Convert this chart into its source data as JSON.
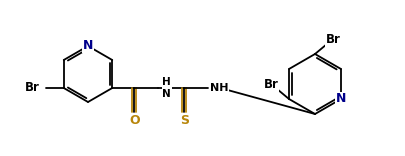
{
  "bg_color": "#ffffff",
  "bond_color": "#000000",
  "atom_colors": {
    "N": "#00008b",
    "O": "#b8860b",
    "S": "#b8860b",
    "Br": "#000000"
  },
  "figsize": [
    4.06,
    1.56
  ],
  "dpi": 100,
  "lw": 1.3,
  "fs": 8.5,
  "r": 28
}
